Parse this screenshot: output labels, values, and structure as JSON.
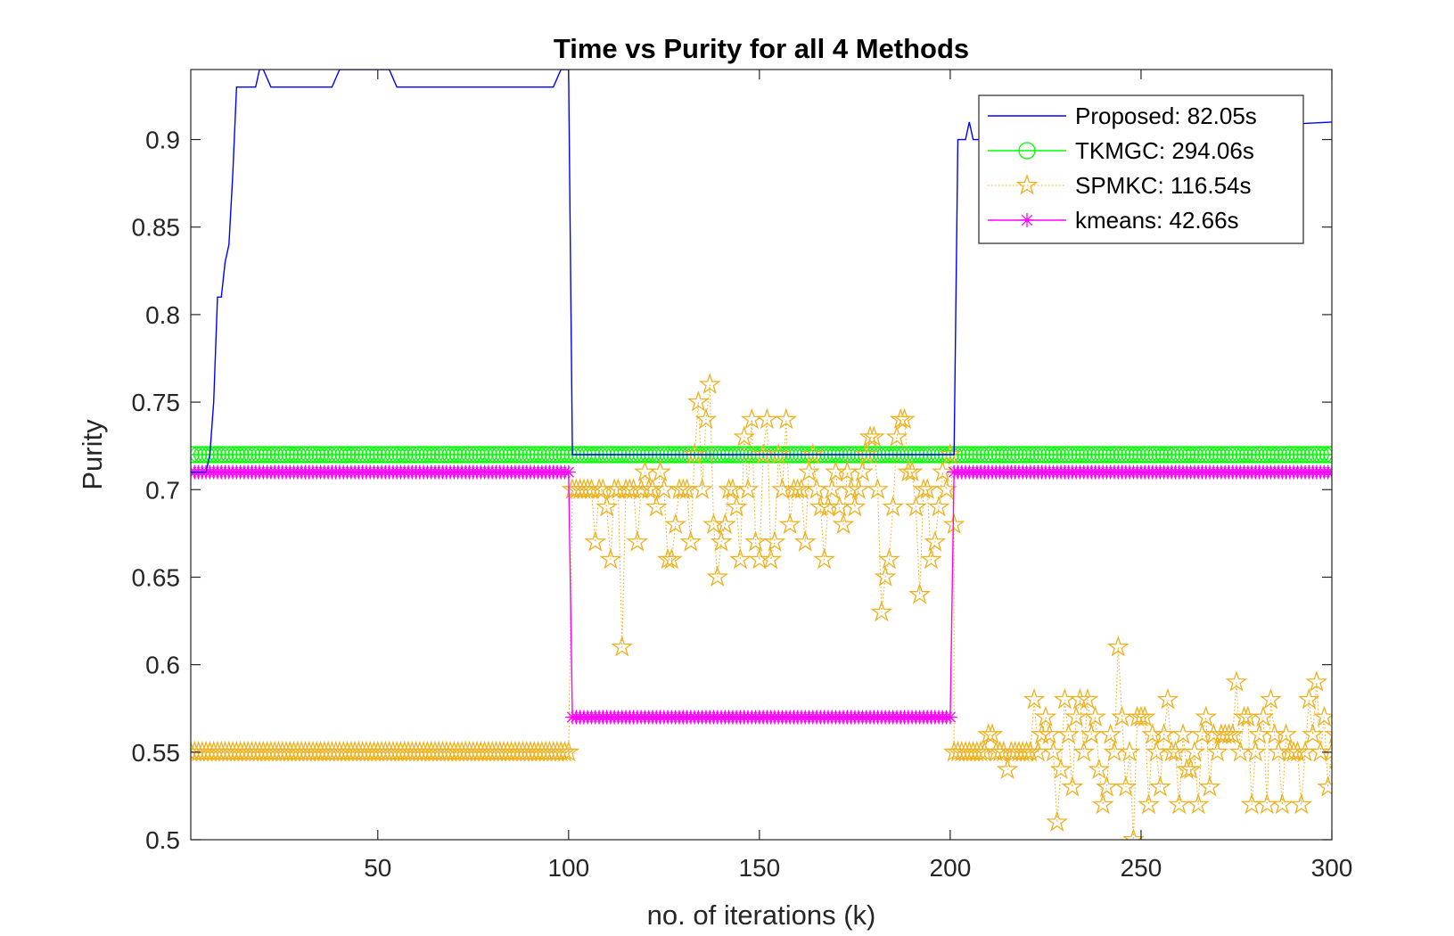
{
  "chart_data": {
    "type": "line",
    "title": "Time vs Purity for all 4 Methods",
    "xlabel": "no. of iterations (k)",
    "ylabel": "Purity",
    "xlim": [
      1,
      300
    ],
    "ylim": [
      0.5,
      0.94
    ],
    "xticks": [
      50,
      100,
      150,
      200,
      250,
      300
    ],
    "yticks": [
      0.5,
      0.55,
      0.6,
      0.65,
      0.7,
      0.75,
      0.8,
      0.85,
      0.9
    ],
    "grid": false,
    "legend_position": "top-right",
    "series": [
      {
        "name": "Proposed: 82.05s",
        "color": "#0000ff",
        "marker": "none",
        "line": "solid",
        "points": [
          [
            1,
            0.71
          ],
          [
            2,
            0.71
          ],
          [
            3,
            0.71
          ],
          [
            4,
            0.71
          ],
          [
            5,
            0.71
          ],
          [
            6,
            0.72
          ],
          [
            7,
            0.75
          ],
          [
            8,
            0.81
          ],
          [
            9,
            0.81
          ],
          [
            10,
            0.83
          ],
          [
            11,
            0.84
          ],
          [
            12,
            0.88
          ],
          [
            13,
            0.93
          ],
          [
            14,
            0.93
          ],
          [
            18,
            0.93
          ],
          [
            19,
            0.94
          ],
          [
            20,
            0.94
          ],
          [
            22,
            0.93
          ],
          [
            37,
            0.93
          ],
          [
            38,
            0.93
          ],
          [
            40,
            0.94
          ],
          [
            50,
            0.94
          ],
          [
            52,
            0.94
          ],
          [
            53,
            0.94
          ],
          [
            55,
            0.93
          ],
          [
            96,
            0.93
          ],
          [
            98,
            0.94
          ],
          [
            100,
            0.94
          ],
          [
            101,
            0.72
          ],
          [
            102,
            0.72
          ],
          [
            200,
            0.72
          ],
          [
            201,
            0.72
          ],
          [
            202,
            0.9
          ],
          [
            204,
            0.9
          ],
          [
            205,
            0.91
          ],
          [
            206,
            0.9
          ],
          [
            209,
            0.9
          ],
          [
            300,
            0.91
          ]
        ]
      },
      {
        "name": "TKMGC: 294.06s",
        "color": "#00ff00",
        "marker": "circle",
        "line": "solid",
        "constant": 0.72
      },
      {
        "name": "SPMKC: 116.54s",
        "color": "#edb120",
        "marker": "star",
        "line": "dotted",
        "segments": [
          {
            "from": 1,
            "to": 100,
            "value": 0.55
          },
          {
            "x_start": 101,
            "values": [
              0.7,
              0.7,
              0.7,
              0.7,
              0.7,
              0.7,
              0.67,
              0.7,
              0.7,
              0.69,
              0.66,
              0.7,
              0.7,
              0.61,
              0.7,
              0.7,
              0.7,
              0.67,
              0.7,
              0.71,
              0.7,
              0.7,
              0.69,
              0.71,
              0.7,
              0.66,
              0.66,
              0.68,
              0.7,
              0.7,
              0.7,
              0.67,
              0.72,
              0.75,
              0.7,
              0.74,
              0.76,
              0.68,
              0.65,
              0.67,
              0.68,
              0.7,
              0.7,
              0.69,
              0.66,
              0.73,
              0.7,
              0.74,
              0.67,
              0.66,
              0.72,
              0.74,
              0.66,
              0.67,
              0.72,
              0.7,
              0.74,
              0.68,
              0.7,
              0.7,
              0.7,
              0.67,
              0.71,
              0.72,
              0.7,
              0.69,
              0.66,
              0.69,
              0.7,
              0.71,
              0.69,
              0.68,
              0.71,
              0.7,
              0.69,
              0.7,
              0.71,
              0.72,
              0.73,
              0.73,
              0.7,
              0.63,
              0.65,
              0.66,
              0.69,
              0.73,
              0.74,
              0.74,
              0.71,
              0.71,
              0.69,
              0.64,
              0.7,
              0.7,
              0.66,
              0.67,
              0.69,
              0.71,
              0.7,
              0.72,
              0.68
            ]
          },
          {
            "x_start": 201,
            "values": [
              0.55,
              0.55,
              0.55,
              0.55,
              0.55,
              0.55,
              0.55,
              0.55,
              0.55,
              0.56,
              0.56,
              0.55,
              0.55,
              0.55,
              0.54,
              0.55,
              0.55,
              0.55,
              0.55,
              0.55,
              0.55,
              0.58,
              0.55,
              0.56,
              0.57,
              0.56,
              0.55,
              0.51,
              0.54,
              0.58,
              0.56,
              0.53,
              0.57,
              0.58,
              0.55,
              0.58,
              0.56,
              0.57,
              0.54,
              0.52,
              0.53,
              0.56,
              0.55,
              0.61,
              0.57,
              0.53,
              0.55,
              0.5,
              0.57,
              0.57,
              0.57,
              0.52,
              0.56,
              0.55,
              0.53,
              0.56,
              0.58,
              0.55,
              0.55,
              0.52,
              0.56,
              0.54,
              0.54,
              0.55,
              0.52,
              0.56,
              0.57,
              0.53,
              0.56,
              0.55,
              0.56,
              0.56,
              0.56,
              0.56,
              0.59,
              0.55,
              0.57,
              0.57,
              0.52,
              0.55,
              0.56,
              0.57,
              0.52,
              0.58,
              0.56,
              0.55,
              0.52,
              0.56,
              0.55,
              0.55,
              0.55,
              0.52,
              0.55,
              0.58,
              0.56,
              0.59,
              0.55,
              0.57,
              0.53,
              0.55,
              0.56,
              0.54,
              0.56,
              0.52,
              0.57,
              0.6,
              0.52,
              0.57
            ]
          }
        ]
      },
      {
        "name": "kmeans: 42.66s",
        "color": "#ff00ff",
        "marker": "asterisk",
        "line": "solid",
        "segments": [
          {
            "from": 1,
            "to": 100,
            "value": 0.71
          },
          {
            "from": 101,
            "to": 200,
            "value": 0.57
          },
          {
            "from": 201,
            "to": 300,
            "value": 0.71
          }
        ]
      }
    ]
  }
}
